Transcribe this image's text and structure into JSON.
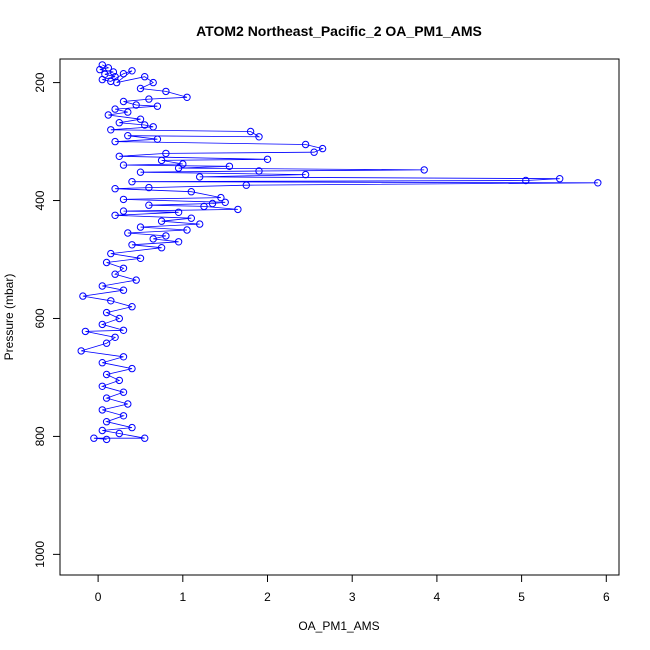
{
  "chart_data": {
    "type": "scatter",
    "title": "ATOM2 Northeast_Pacific_2 OA_PM1_AMS",
    "xlabel": "OA_PM1_AMS",
    "ylabel": "Pressure (mbar)",
    "xlim": [
      -0.45,
      6.15
    ],
    "ylim": [
      1035,
      160
    ],
    "y_reversed": true,
    "x_ticks": [
      0,
      1,
      2,
      3,
      4,
      5,
      6
    ],
    "y_ticks": [
      200,
      400,
      600,
      800,
      1000
    ],
    "grid": false,
    "legend": "none",
    "marker": "open-circle",
    "connect_points": true,
    "color": "#0000ff",
    "series": [
      {
        "points": [
          [
            0.05,
            170
          ],
          [
            0.12,
            175
          ],
          [
            0.02,
            178
          ],
          [
            0.18,
            182
          ],
          [
            0.08,
            186
          ],
          [
            0.2,
            190
          ],
          [
            0.05,
            195
          ],
          [
            0.15,
            198
          ],
          [
            0.3,
            185
          ],
          [
            0.4,
            180
          ],
          [
            0.22,
            200
          ],
          [
            0.55,
            190
          ],
          [
            0.65,
            200
          ],
          [
            0.5,
            210
          ],
          [
            0.8,
            215
          ],
          [
            1.05,
            225
          ],
          [
            0.6,
            228
          ],
          [
            0.3,
            232
          ],
          [
            0.45,
            238
          ],
          [
            0.7,
            240
          ],
          [
            0.2,
            245
          ],
          [
            0.35,
            250
          ],
          [
            0.12,
            255
          ],
          [
            0.5,
            262
          ],
          [
            0.25,
            268
          ],
          [
            0.55,
            272
          ],
          [
            0.65,
            275
          ],
          [
            0.15,
            280
          ],
          [
            1.8,
            283
          ],
          [
            1.9,
            292
          ],
          [
            0.35,
            290
          ],
          [
            0.7,
            296
          ],
          [
            0.2,
            300
          ],
          [
            2.45,
            305
          ],
          [
            2.65,
            312
          ],
          [
            2.55,
            318
          ],
          [
            0.8,
            320
          ],
          [
            0.25,
            325
          ],
          [
            2.0,
            330
          ],
          [
            0.75,
            332
          ],
          [
            1.0,
            338
          ],
          [
            0.3,
            340
          ],
          [
            1.55,
            342
          ],
          [
            0.95,
            345
          ],
          [
            3.85,
            348
          ],
          [
            1.9,
            350
          ],
          [
            0.5,
            352
          ],
          [
            2.45,
            356
          ],
          [
            1.2,
            360
          ],
          [
            5.45,
            363
          ],
          [
            5.05,
            366
          ],
          [
            0.4,
            368
          ],
          [
            5.9,
            370
          ],
          [
            1.75,
            374
          ],
          [
            0.6,
            378
          ],
          [
            0.2,
            380
          ],
          [
            1.1,
            385
          ],
          [
            1.45,
            395
          ],
          [
            0.3,
            398
          ],
          [
            1.5,
            403
          ],
          [
            1.35,
            405
          ],
          [
            0.6,
            408
          ],
          [
            1.25,
            410
          ],
          [
            1.65,
            415
          ],
          [
            0.3,
            418
          ],
          [
            0.95,
            420
          ],
          [
            0.2,
            425
          ],
          [
            1.1,
            430
          ],
          [
            0.75,
            435
          ],
          [
            1.2,
            440
          ],
          [
            0.5,
            445
          ],
          [
            1.05,
            450
          ],
          [
            0.35,
            455
          ],
          [
            0.8,
            460
          ],
          [
            0.65,
            465
          ],
          [
            0.95,
            470
          ],
          [
            0.4,
            475
          ],
          [
            0.75,
            480
          ],
          [
            0.15,
            490
          ],
          [
            0.5,
            498
          ],
          [
            0.1,
            505
          ],
          [
            0.3,
            515
          ],
          [
            0.2,
            525
          ],
          [
            0.45,
            535
          ],
          [
            0.05,
            545
          ],
          [
            0.3,
            552
          ],
          [
            -0.18,
            562
          ],
          [
            0.15,
            570
          ],
          [
            0.4,
            580
          ],
          [
            0.1,
            590
          ],
          [
            0.25,
            600
          ],
          [
            0.05,
            610
          ],
          [
            0.3,
            620
          ],
          [
            -0.15,
            622
          ],
          [
            0.2,
            632
          ],
          [
            0.1,
            642
          ],
          [
            -0.2,
            655
          ],
          [
            0.3,
            665
          ],
          [
            0.05,
            675
          ],
          [
            0.4,
            685
          ],
          [
            0.1,
            695
          ],
          [
            0.25,
            705
          ],
          [
            0.05,
            715
          ],
          [
            0.3,
            725
          ],
          [
            0.1,
            735
          ],
          [
            0.35,
            745
          ],
          [
            0.05,
            755
          ],
          [
            0.3,
            765
          ],
          [
            0.1,
            775
          ],
          [
            0.4,
            785
          ],
          [
            0.05,
            790
          ],
          [
            0.25,
            795
          ],
          [
            0.55,
            803
          ],
          [
            -0.05,
            803
          ],
          [
            0.1,
            805
          ]
        ]
      }
    ]
  }
}
